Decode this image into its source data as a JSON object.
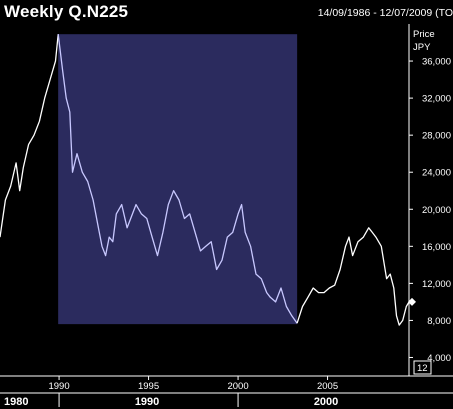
{
  "header": {
    "title": "Weekly Q.N225",
    "date_range": "14/09/1986 - 12/07/2009 (TO"
  },
  "colors": {
    "background": "#000000",
    "price_line": "#ffffff",
    "highlight_fill": "#2b2b5e",
    "highlight_line": "#c8c8ff",
    "axis": "#ffffff"
  },
  "axis_box_label": "12",
  "chart_data": {
    "type": "line",
    "title": "Weekly Q.N225",
    "ylabel": "Price",
    "yunit": "JPY",
    "ylim": [
      2000,
      40000
    ],
    "xlim": [
      1986.7,
      2009.55
    ],
    "y_ticks": [
      {
        "value": 4000,
        "label": "4,000"
      },
      {
        "value": 8000,
        "label": "8,000"
      },
      {
        "value": 12000,
        "label": "12,000"
      },
      {
        "value": 16000,
        "label": "16,000"
      },
      {
        "value": 20000,
        "label": "20,000"
      },
      {
        "value": 24000,
        "label": "24,000"
      },
      {
        "value": 28000,
        "label": "28,000"
      },
      {
        "value": 32000,
        "label": "32,000"
      },
      {
        "value": 36000,
        "label": "36,000"
      }
    ],
    "x_ticks": [
      {
        "value": 1990,
        "label": "1990"
      },
      {
        "value": 1995,
        "label": "1995"
      },
      {
        "value": 2000,
        "label": "2000"
      },
      {
        "value": 2005,
        "label": "2005"
      }
    ],
    "x_major_ticks": [
      {
        "value": 1980,
        "label": "1980"
      },
      {
        "value": 1990,
        "label": "1990"
      },
      {
        "value": 2000,
        "label": "2000"
      }
    ],
    "highlight": {
      "x_start": 1989.95,
      "x_end": 2003.3,
      "y_low": 7600,
      "y_high": 38900
    },
    "series": [
      {
        "x": [
          1986.7,
          1987.0,
          1987.3,
          1987.6,
          1987.8,
          1988.0,
          1988.3,
          1988.6,
          1988.9,
          1989.2,
          1989.5,
          1989.8,
          1989.95,
          1990.2,
          1990.4,
          1990.6,
          1990.75,
          1991.0,
          1991.3,
          1991.6,
          1991.9,
          1992.2,
          1992.4,
          1992.6,
          1992.8,
          1993.0,
          1993.2,
          1993.5,
          1993.8,
          1994.0,
          1994.3,
          1994.6,
          1994.9,
          1995.2,
          1995.5,
          1995.8,
          1996.1,
          1996.4,
          1996.7,
          1997.0,
          1997.3,
          1997.6,
          1997.9,
          1998.2,
          1998.5,
          1998.8,
          1999.1,
          1999.4,
          1999.7,
          2000.0,
          2000.2,
          2000.4,
          2000.7,
          2001.0,
          2001.3,
          2001.6,
          2001.8,
          2002.1,
          2002.4,
          2002.7,
          2003.0,
          2003.3,
          2003.6,
          2003.9,
          2004.2,
          2004.5,
          2004.8,
          2005.1,
          2005.4,
          2005.7,
          2006.0,
          2006.2,
          2006.4,
          2006.7,
          2007.0,
          2007.3,
          2007.5,
          2007.7,
          2008.0,
          2008.3,
          2008.5,
          2008.7,
          2008.85,
          2009.0,
          2009.2,
          2009.4,
          2009.55
        ],
        "y": [
          17000,
          21000,
          22500,
          25000,
          22000,
          24500,
          27000,
          28000,
          29500,
          32000,
          34000,
          36000,
          38900,
          35000,
          32000,
          30500,
          24000,
          26000,
          24000,
          23000,
          21000,
          18000,
          16000,
          15000,
          17000,
          16500,
          19500,
          20500,
          18000,
          19000,
          20500,
          19500,
          19000,
          17000,
          15000,
          17500,
          20500,
          22000,
          21000,
          19000,
          19500,
          17500,
          15500,
          16000,
          16500,
          13500,
          14500,
          17000,
          17500,
          19500,
          20500,
          17500,
          16000,
          13000,
          12500,
          11000,
          10500,
          10000,
          11500,
          9500,
          8500,
          7700,
          9500,
          10500,
          11500,
          11000,
          11000,
          11500,
          11800,
          13500,
          16000,
          17000,
          15000,
          16500,
          17000,
          18000,
          17500,
          17000,
          16000,
          12500,
          13000,
          11500,
          8500,
          7500,
          8000,
          9500,
          10000
        ]
      }
    ]
  }
}
